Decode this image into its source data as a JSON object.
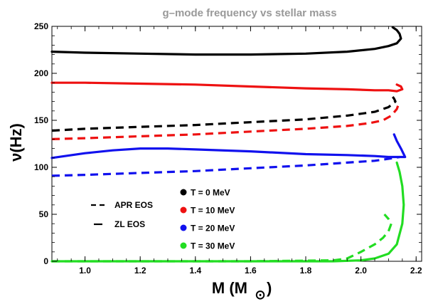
{
  "chart_data": {
    "type": "line",
    "title": "g–mode frequency vs stellar mass",
    "xlabel": "M (M",
    "xlabel_sub": "⊙",
    "ylabel": "ν(Hz)",
    "xlim": [
      0.88,
      2.22
    ],
    "ylim": [
      0,
      250
    ],
    "xticks": [
      "1.0",
      "1.2",
      "1.4",
      "1.6",
      "1.8",
      "2.0",
      "2.2"
    ],
    "yticks": [
      "0",
      "50",
      "100",
      "150",
      "200",
      "250"
    ],
    "grid": false,
    "legend_placement": "bottom-left",
    "style_legend": [
      {
        "label": "APR EOS",
        "dash": "dashed"
      },
      {
        "label": "ZL EOS",
        "dash": "solid"
      }
    ],
    "colors": {
      "t0": "#000000",
      "t10": "#ee1111",
      "t20": "#1111ee",
      "t30": "#22dd22"
    },
    "series": [
      {
        "name": "T = 0 MeV",
        "color": "#000000",
        "solid": [
          [
            0.88,
            223
          ],
          [
            1.0,
            222
          ],
          [
            1.2,
            221
          ],
          [
            1.4,
            220
          ],
          [
            1.6,
            220
          ],
          [
            1.8,
            221
          ],
          [
            1.95,
            223
          ],
          [
            2.05,
            226
          ],
          [
            2.1,
            229
          ],
          [
            2.13,
            232
          ],
          [
            2.145,
            237
          ],
          [
            2.14,
            242
          ],
          [
            2.13,
            246
          ],
          [
            2.115,
            249
          ]
        ],
        "dashed": [
          [
            0.88,
            139
          ],
          [
            1.0,
            141
          ],
          [
            1.2,
            143
          ],
          [
            1.4,
            145
          ],
          [
            1.6,
            148
          ],
          [
            1.8,
            151
          ],
          [
            1.95,
            155
          ],
          [
            2.05,
            159
          ],
          [
            2.1,
            164
          ],
          [
            2.125,
            170
          ],
          [
            2.12,
            173
          ],
          [
            2.115,
            175
          ]
        ]
      },
      {
        "name": "T = 10 MeV",
        "color": "#ee1111",
        "solid": [
          [
            0.88,
            190
          ],
          [
            1.0,
            190
          ],
          [
            1.2,
            189
          ],
          [
            1.4,
            188
          ],
          [
            1.6,
            186
          ],
          [
            1.8,
            184
          ],
          [
            1.95,
            183
          ],
          [
            2.05,
            182
          ],
          [
            2.1,
            182
          ],
          [
            2.13,
            181
          ],
          [
            2.15,
            183
          ],
          [
            2.145,
            186
          ],
          [
            2.13,
            188
          ]
        ],
        "dashed": [
          [
            0.88,
            130
          ],
          [
            1.0,
            131
          ],
          [
            1.2,
            133
          ],
          [
            1.4,
            135
          ],
          [
            1.6,
            138
          ],
          [
            1.8,
            141
          ],
          [
            1.95,
            144
          ],
          [
            2.03,
            147
          ],
          [
            2.08,
            150
          ],
          [
            2.11,
            155
          ],
          [
            2.13,
            162
          ],
          [
            2.135,
            166
          ],
          [
            2.13,
            169
          ]
        ]
      },
      {
        "name": "T = 20 MeV",
        "color": "#1111ee",
        "solid": [
          [
            0.88,
            110
          ],
          [
            1.0,
            115
          ],
          [
            1.1,
            118
          ],
          [
            1.2,
            120
          ],
          [
            1.3,
            120
          ],
          [
            1.4,
            119
          ],
          [
            1.6,
            117
          ],
          [
            1.8,
            114
          ],
          [
            1.95,
            113
          ],
          [
            2.05,
            112
          ],
          [
            2.1,
            111
          ],
          [
            2.16,
            111
          ],
          [
            2.145,
            120
          ],
          [
            2.13,
            128
          ],
          [
            2.12,
            135
          ]
        ],
        "dashed": [
          [
            0.88,
            91
          ],
          [
            1.0,
            92
          ],
          [
            1.2,
            94
          ],
          [
            1.4,
            96
          ],
          [
            1.6,
            99
          ],
          [
            1.8,
            102
          ],
          [
            1.95,
            105
          ],
          [
            2.05,
            107
          ],
          [
            2.1,
            109
          ],
          [
            2.14,
            111
          ]
        ]
      },
      {
        "name": "T = 30 MeV",
        "color": "#22dd22",
        "solid": [
          [
            0.88,
            0
          ],
          [
            1.2,
            0
          ],
          [
            1.6,
            0
          ],
          [
            1.9,
            0
          ],
          [
            2.0,
            1
          ],
          [
            2.05,
            3
          ],
          [
            2.1,
            8
          ],
          [
            2.13,
            18
          ],
          [
            2.15,
            40
          ],
          [
            2.155,
            60
          ],
          [
            2.15,
            80
          ],
          [
            2.14,
            95
          ],
          [
            2.13,
            105
          ]
        ],
        "dashed": [
          [
            0.88,
            0
          ],
          [
            1.2,
            0
          ],
          [
            1.6,
            0
          ],
          [
            1.9,
            1
          ],
          [
            1.95,
            3
          ],
          [
            2.0,
            10
          ],
          [
            2.05,
            18
          ],
          [
            2.08,
            25
          ],
          [
            2.1,
            32
          ],
          [
            2.11,
            40
          ],
          [
            2.1,
            45
          ],
          [
            2.085,
            50
          ]
        ]
      }
    ]
  }
}
